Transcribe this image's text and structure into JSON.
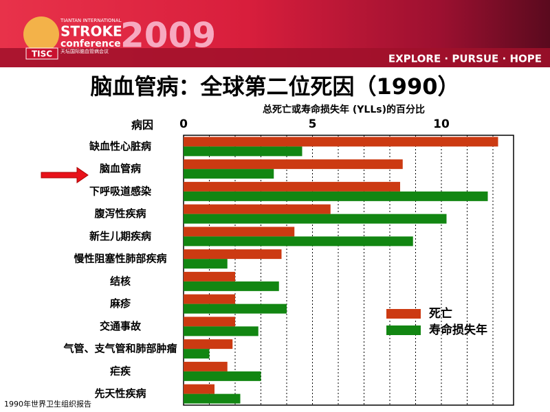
{
  "header": {
    "org_small": "TIANTAN INTERNATIONAL",
    "org_big": "STROKE",
    "org_conf": "conference",
    "org_cn": "天坛国际脑血管病会议",
    "badge": "TISC",
    "year": "2009",
    "slogan": "EXPLORE · PURSUE · HOPE"
  },
  "chart_data": {
    "type": "hbar",
    "title": "脑血管病：全球第二位死因（1990）",
    "subtitle": "总死亡或寿命损失年 (YLLs)的百分比",
    "category_header": "病因",
    "categories": [
      "缺血性心脏病",
      "脑血管病",
      "下呼吸道感染",
      "腹泻性疾病",
      "新生儿期疾病",
      "慢性阻塞性肺部疾病",
      "结核",
      "麻疹",
      "交通事故",
      "气管、支气管和肺部肿瘤",
      "疟疾",
      "先天性疾病"
    ],
    "series": [
      {
        "name": "死亡",
        "color": "#cc3a12",
        "values": [
          12.2,
          8.5,
          8.4,
          5.7,
          4.3,
          3.8,
          2.0,
          2.0,
          2.0,
          1.9,
          1.7,
          1.2
        ]
      },
      {
        "name": "寿命损失年",
        "color": "#128612",
        "values": [
          4.6,
          3.5,
          11.8,
          10.2,
          8.9,
          1.7,
          3.7,
          4.0,
          2.9,
          1.0,
          3.0,
          2.2
        ]
      }
    ],
    "xlim": [
      0,
      12.8
    ],
    "xticks": [
      0,
      5,
      10
    ],
    "xgrid": [
      1,
      2,
      3,
      4,
      5,
      6,
      7,
      8,
      9,
      10,
      11,
      12
    ]
  },
  "footer": "1990年世界卫生组织报告"
}
